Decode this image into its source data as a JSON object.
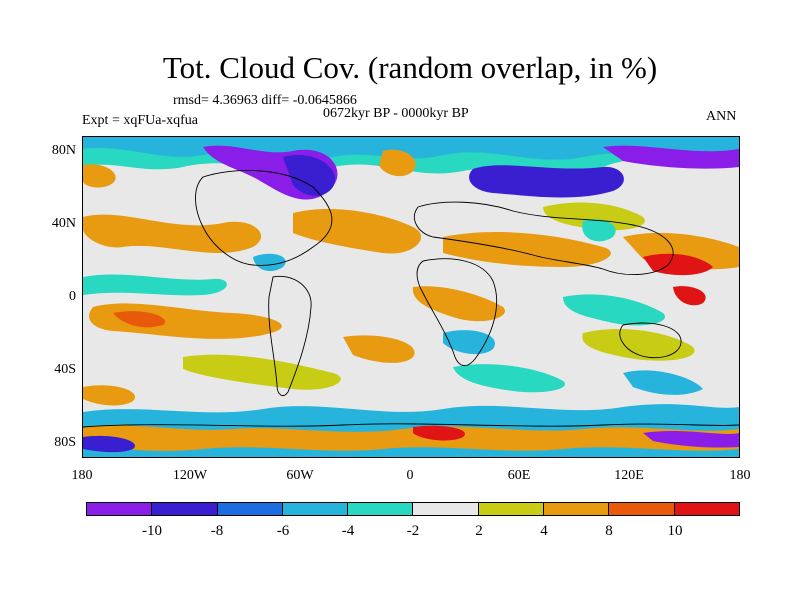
{
  "title": "Tot. Cloud Cov. (random overlap, in %)",
  "stats_line": "rmsd= 4.36963 diff= -0.0645866",
  "period": "0672kyr BP - 0000kyr BP",
  "experiment": "Expt = xqFUa-xqfua",
  "season": "ANN",
  "map": {
    "lat_labels": [
      "80N",
      "40N",
      "0",
      "40S",
      "80S"
    ],
    "lon_labels": [
      "180",
      "120W",
      "60W",
      "0",
      "60E",
      "120E",
      "180"
    ],
    "lat_range": [
      -90,
      90
    ],
    "lon_range": [
      -180,
      180
    ]
  },
  "colorbar": {
    "levels": [
      "-10",
      "-8",
      "-6",
      "-4",
      "-2",
      "2",
      "4",
      "8",
      "10"
    ],
    "colors": [
      "#8a1ee8",
      "#3a1fd0",
      "#1c6ee0",
      "#27b4dc",
      "#28d8c0",
      "#e8e8e8",
      "#c8cc14",
      "#e89a10",
      "#e85a0a",
      "#e01414"
    ]
  }
}
